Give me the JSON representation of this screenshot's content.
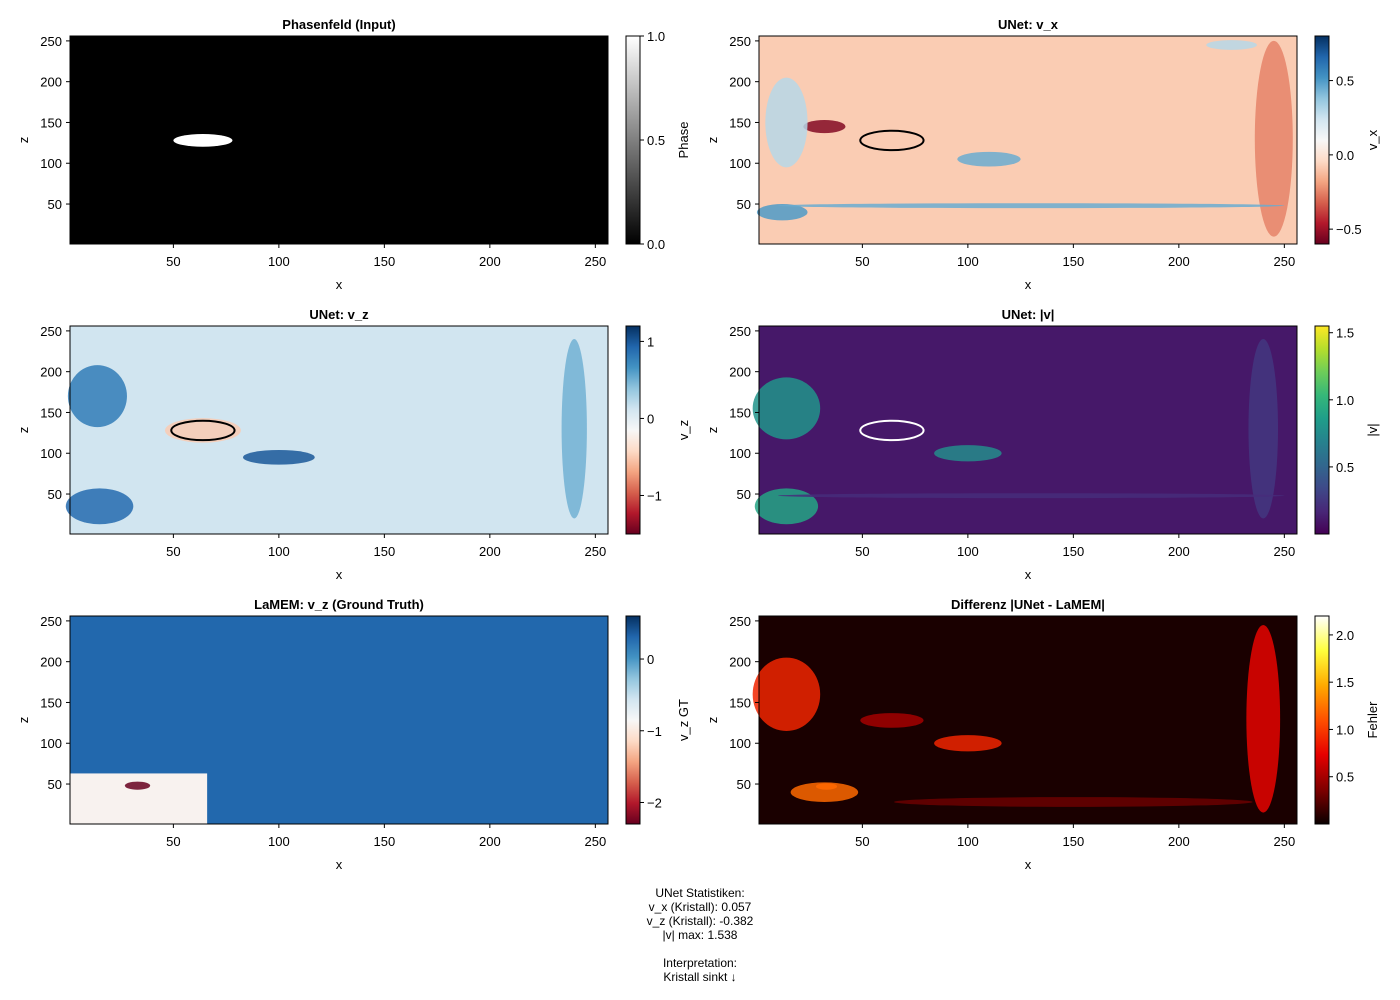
{
  "chart_data": [
    {
      "type": "heatmap",
      "title": "Phasenfeld (Input)",
      "xlabel": "x",
      "ylabel": "z",
      "xlim": [
        1,
        256
      ],
      "ylim": [
        1,
        256
      ],
      "xticks": [
        50,
        100,
        150,
        200,
        250
      ],
      "yticks": [
        50,
        100,
        150,
        200,
        250
      ],
      "colormap": "grays",
      "colorbar": {
        "label": "Phase",
        "range": [
          0.0,
          1.0
        ],
        "ticks": [
          0.0,
          0.5,
          1.0
        ],
        "tick_labels": [
          "0.0",
          "0.5",
          "1.0"
        ]
      },
      "description_values": {
        "background": 0.0,
        "crystal": 1.0
      },
      "overlay": {
        "shape": "ellipse",
        "cx": 64,
        "cy": 128,
        "rx": 14,
        "ry": 13
      }
    },
    {
      "type": "heatmap",
      "title": "UNet: v_x",
      "xlabel": "x",
      "ylabel": "z",
      "xlim": [
        1,
        256
      ],
      "ylim": [
        1,
        256
      ],
      "xticks": [
        50,
        100,
        150,
        200,
        250
      ],
      "yticks": [
        50,
        100,
        150,
        200,
        250
      ],
      "colormap": "RdBu",
      "colorbar": {
        "label": "v_x",
        "range": [
          -0.6,
          0.8
        ],
        "ticks": [
          -0.5,
          0.0,
          0.5
        ],
        "tick_labels": [
          "−0.5",
          "0.0",
          "0.5"
        ]
      },
      "description_values": {
        "background": -0.08
      },
      "overlay": {
        "shape": "ellipse",
        "cx": 64,
        "cy": 128,
        "rx": 15,
        "ry": 14,
        "color": "#000000"
      }
    },
    {
      "type": "heatmap",
      "title": "UNet: v_z",
      "xlabel": "x",
      "ylabel": "z",
      "xlim": [
        1,
        256
      ],
      "ylim": [
        1,
        256
      ],
      "xticks": [
        50,
        100,
        150,
        200,
        250
      ],
      "yticks": [
        50,
        100,
        150,
        200,
        250
      ],
      "colormap": "RdBu",
      "colorbar": {
        "label": "v_z",
        "range": [
          -1.5,
          1.2
        ],
        "ticks": [
          -1,
          0,
          1
        ],
        "tick_labels": [
          "−1",
          "0",
          "1"
        ]
      },
      "description_values": {
        "background": 0.12
      },
      "overlay": {
        "shape": "ellipse",
        "cx": 64,
        "cy": 128,
        "rx": 15,
        "ry": 14,
        "color": "#000000"
      }
    },
    {
      "type": "heatmap",
      "title": "UNet: |v|",
      "xlabel": "x",
      "ylabel": "z",
      "xlim": [
        1,
        256
      ],
      "ylim": [
        1,
        256
      ],
      "xticks": [
        50,
        100,
        150,
        200,
        250
      ],
      "yticks": [
        50,
        100,
        150,
        200,
        250
      ],
      "colormap": "viridis",
      "colorbar": {
        "label": "|v|",
        "range": [
          0.0,
          1.55
        ],
        "ticks": [
          0.5,
          1.0,
          1.5
        ],
        "tick_labels": [
          "0.5",
          "1.0",
          "1.5"
        ]
      },
      "description_values": {
        "background": 0.1
      },
      "overlay": {
        "shape": "ellipse",
        "cx": 64,
        "cy": 128,
        "rx": 15,
        "ry": 14,
        "color": "#ffffff"
      }
    },
    {
      "type": "heatmap",
      "title": "LaMEM: v_z (Ground Truth)",
      "xlabel": "x",
      "ylabel": "z",
      "xlim": [
        1,
        256
      ],
      "ylim": [
        1,
        256
      ],
      "xticks": [
        50,
        100,
        150,
        200,
        250
      ],
      "yticks": [
        50,
        100,
        150,
        200,
        250
      ],
      "colormap": "RdBu",
      "colorbar": {
        "label": "v_z GT",
        "range": [
          -2.3,
          0.6
        ],
        "ticks": [
          -2,
          -1,
          0
        ],
        "tick_labels": [
          "−2",
          "−1",
          "0"
        ]
      },
      "description_values": {
        "background": 0.3,
        "minimum_near": [
          33,
          48
        ]
      }
    },
    {
      "type": "heatmap",
      "title": "Differenz |UNet - LaMEM|",
      "xlabel": "x",
      "ylabel": "z",
      "xlim": [
        1,
        256
      ],
      "ylim": [
        1,
        256
      ],
      "xticks": [
        50,
        100,
        150,
        200,
        250
      ],
      "yticks": [
        50,
        100,
        150,
        200,
        250
      ],
      "colormap": "hot",
      "colorbar": {
        "label": "Fehler",
        "range": [
          0.0,
          2.2
        ],
        "ticks": [
          0.5,
          1.0,
          1.5,
          2.0
        ],
        "tick_labels": [
          "0.5",
          "1.0",
          "1.5",
          "2.0"
        ]
      },
      "description_values": {
        "background": 0.05,
        "maximum_near": [
          32,
          47
        ]
      }
    }
  ],
  "stats": {
    "lines": [
      "UNet Statistiken:",
      "v_x (Kristall): 0.057",
      "v_z (Kristall): -0.382",
      "|v| max: 1.538",
      "",
      "Interpretation:",
      "Kristall sinkt ↓"
    ]
  }
}
